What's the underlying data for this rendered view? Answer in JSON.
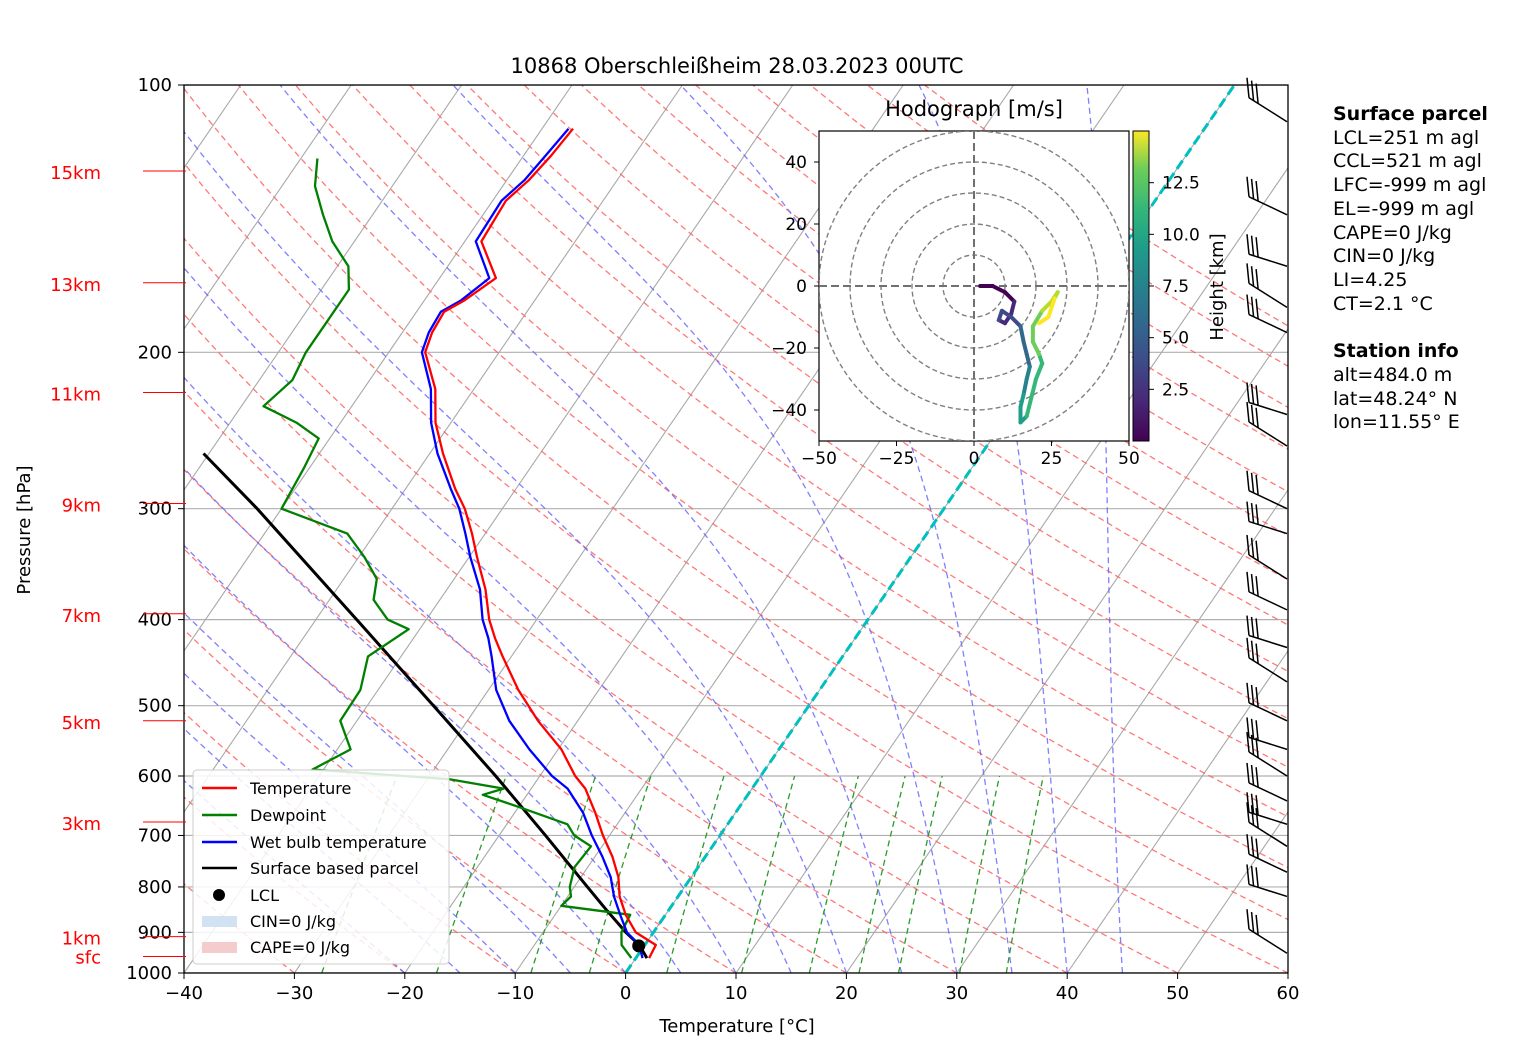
{
  "title": "10868 Oberschleißheim 28.03.2023 00UTC",
  "xlabel": "Temperature [°C]",
  "ylabel": "Pressure [hPa]",
  "height_labels": [
    "15km",
    "13km",
    "11km",
    "9km",
    "7km",
    "5km",
    "3km",
    "1km",
    "sfc"
  ],
  "legend": {
    "temperature": "Temperature",
    "dewpoint": "Dewpoint",
    "wetbulb": "Wet bulb temperature",
    "parcel": "Surface based parcel",
    "lcl": "LCL",
    "cin": "CIN=0 J/kg",
    "cape": "CAPE=0 J/kg"
  },
  "hodograph": {
    "title": "Hodograph [m/s]",
    "colorbar_label": "Height [km]",
    "colorbar_ticks": [
      "2.5",
      "5.0",
      "7.5",
      "10.0",
      "12.5"
    ],
    "axis_ticks": [
      "−50",
      "−25",
      "0",
      "25",
      "50"
    ],
    "y_ticks": [
      "40",
      "20",
      "0",
      "−20",
      "−40"
    ]
  },
  "surface_parcel": {
    "heading": "Surface parcel",
    "lines": [
      "LCL=251 m agl",
      "CCL=521 m agl",
      "LFC=-999 m agl",
      "EL=-999 m agl",
      "CAPE=0 J/kg",
      "CIN=0 J/kg",
      "LI=4.25",
      "CT=2.1 °C"
    ]
  },
  "station_info": {
    "heading": "Station info",
    "lines": [
      "alt=484.0 m",
      "lat=48.24° N",
      "lon=11.55° E"
    ]
  },
  "colors": {
    "temperature": "#ff0000",
    "dewpoint": "#008000",
    "wetbulb": "#0000ff",
    "parcel": "#000000",
    "zero_isotherm": "#00bfbf",
    "height_labels": "#ff0000"
  },
  "chart_data": {
    "type": "line",
    "skewT": true,
    "xlim": [
      -40,
      60
    ],
    "ylim": [
      1000,
      100
    ],
    "yscale": "log",
    "x_ticks": [
      -40,
      -30,
      -20,
      -10,
      0,
      10,
      20,
      30,
      40,
      50,
      60
    ],
    "y_ticks": [
      100,
      200,
      300,
      400,
      500,
      600,
      700,
      800,
      900,
      1000
    ],
    "series": [
      {
        "name": "Temperature",
        "key": "temperature",
        "points": [
          [
            962,
            1.2
          ],
          [
            930,
            1.0
          ],
          [
            900,
            -1.6
          ],
          [
            860,
            -3.6
          ],
          [
            820,
            -5.3
          ],
          [
            780,
            -6.6
          ],
          [
            740,
            -8.4
          ],
          [
            700,
            -10.6
          ],
          [
            660,
            -12.7
          ],
          [
            620,
            -15.1
          ],
          [
            600,
            -16.8
          ],
          [
            560,
            -19.7
          ],
          [
            520,
            -23.6
          ],
          [
            480,
            -27.3
          ],
          [
            440,
            -30.8
          ],
          [
            420,
            -32.6
          ],
          [
            400,
            -34.3
          ],
          [
            370,
            -36.5
          ],
          [
            340,
            -39.3
          ],
          [
            320,
            -41.2
          ],
          [
            300,
            -43.4
          ],
          [
            285,
            -45.5
          ],
          [
            260,
            -48.8
          ],
          [
            240,
            -51.4
          ],
          [
            220,
            -53.5
          ],
          [
            200,
            -56.7
          ],
          [
            190,
            -57.3
          ],
          [
            180,
            -57.5
          ],
          [
            175,
            -56.4
          ],
          [
            165,
            -54.9
          ],
          [
            150,
            -58.5
          ],
          [
            135,
            -58.8
          ],
          [
            128,
            -58.0
          ],
          [
            120,
            -57.5
          ],
          [
            112,
            -57.2
          ]
        ]
      },
      {
        "name": "Wet bulb temperature",
        "key": "wetbulb",
        "points": [
          [
            962,
            0.6
          ],
          [
            930,
            -0.5
          ],
          [
            900,
            -2.4
          ],
          [
            860,
            -4.1
          ],
          [
            820,
            -5.8
          ],
          [
            780,
            -7.3
          ],
          [
            740,
            -9.3
          ],
          [
            700,
            -11.6
          ],
          [
            660,
            -13.8
          ],
          [
            620,
            -16.7
          ],
          [
            600,
            -18.9
          ],
          [
            560,
            -22.6
          ],
          [
            520,
            -26.2
          ],
          [
            480,
            -29.3
          ],
          [
            440,
            -31.8
          ],
          [
            420,
            -33.2
          ],
          [
            400,
            -34.9
          ],
          [
            370,
            -37.0
          ],
          [
            340,
            -39.9
          ],
          [
            320,
            -41.8
          ],
          [
            300,
            -43.9
          ],
          [
            285,
            -45.9
          ],
          [
            260,
            -49.3
          ],
          [
            240,
            -51.8
          ],
          [
            220,
            -53.9
          ],
          [
            200,
            -57.0
          ],
          [
            190,
            -57.6
          ],
          [
            180,
            -57.8
          ],
          [
            175,
            -56.7
          ],
          [
            165,
            -55.5
          ],
          [
            150,
            -59.0
          ],
          [
            135,
            -59.2
          ],
          [
            128,
            -58.4
          ],
          [
            120,
            -58.0
          ],
          [
            112,
            -57.6
          ]
        ]
      },
      {
        "name": "Dewpoint",
        "key": "dewpoint",
        "points": [
          [
            962,
            -0.4
          ],
          [
            930,
            -2.1
          ],
          [
            900,
            -2.9
          ],
          [
            860,
            -3.2
          ],
          [
            840,
            -10.0
          ],
          [
            820,
            -9.7
          ],
          [
            800,
            -10.4
          ],
          [
            760,
            -11.2
          ],
          [
            720,
            -11.0
          ],
          [
            700,
            -13.2
          ],
          [
            680,
            -14.5
          ],
          [
            650,
            -20.0
          ],
          [
            630,
            -24.0
          ],
          [
            620,
            -22.5
          ],
          [
            605,
            -28.0
          ],
          [
            590,
            -41.0
          ],
          [
            560,
            -38.8
          ],
          [
            520,
            -41.5
          ],
          [
            480,
            -41.6
          ],
          [
            440,
            -43.0
          ],
          [
            410,
            -41.0
          ],
          [
            400,
            -43.5
          ],
          [
            380,
            -46.0
          ],
          [
            360,
            -47.0
          ],
          [
            340,
            -49.5
          ],
          [
            320,
            -52.5
          ],
          [
            300,
            -60.0
          ],
          [
            270,
            -60.5
          ],
          [
            250,
            -61.0
          ],
          [
            240,
            -64.0
          ],
          [
            230,
            -68.0
          ],
          [
            215,
            -67.0
          ],
          [
            200,
            -67.5
          ],
          [
            185,
            -67.5
          ],
          [
            170,
            -67.5
          ],
          [
            160,
            -69.0
          ],
          [
            150,
            -72.0
          ],
          [
            140,
            -74.5
          ],
          [
            130,
            -77.0
          ],
          [
            121,
            -78.5
          ]
        ]
      },
      {
        "name": "Surface based parcel",
        "key": "parcel",
        "points": [
          [
            962,
            1.0
          ],
          [
            930,
            -0.5
          ],
          [
            900,
            -2.5
          ],
          [
            850,
            -5.6
          ],
          [
            800,
            -8.8
          ],
          [
            700,
            -15.8
          ],
          [
            600,
            -24.0
          ],
          [
            500,
            -34.0
          ],
          [
            400,
            -46.3
          ],
          [
            300,
            -62.2
          ],
          [
            260,
            -70.5
          ]
        ]
      }
    ],
    "lcl": {
      "pressure": 932,
      "temperature": -0.5
    },
    "zero_isotherm": [
      [
        1000,
        0
      ],
      [
        100,
        0
      ]
    ],
    "hodograph_data": {
      "xlim": [
        -50,
        50
      ],
      "ylim": [
        -50,
        50
      ],
      "rings": [
        10,
        20,
        30,
        40,
        50
      ],
      "u": [
        2,
        6,
        10,
        13,
        12,
        10,
        8,
        9,
        12,
        15,
        16,
        17,
        18,
        17,
        16,
        15,
        15,
        17,
        20,
        22,
        21,
        19,
        19,
        22,
        25,
        27,
        26,
        24,
        21
      ],
      "v": [
        0,
        0,
        -2,
        -5,
        -9,
        -12,
        -11,
        -8,
        -10,
        -13,
        -18,
        -22,
        -26,
        -30,
        -35,
        -39,
        -44,
        -42,
        -30,
        -25,
        -22,
        -18,
        -13,
        -8,
        -5,
        -2,
        -4,
        -10,
        -12
      ],
      "height_km_range": [
        0,
        15
      ]
    },
    "wind_barb_count": 22
  }
}
